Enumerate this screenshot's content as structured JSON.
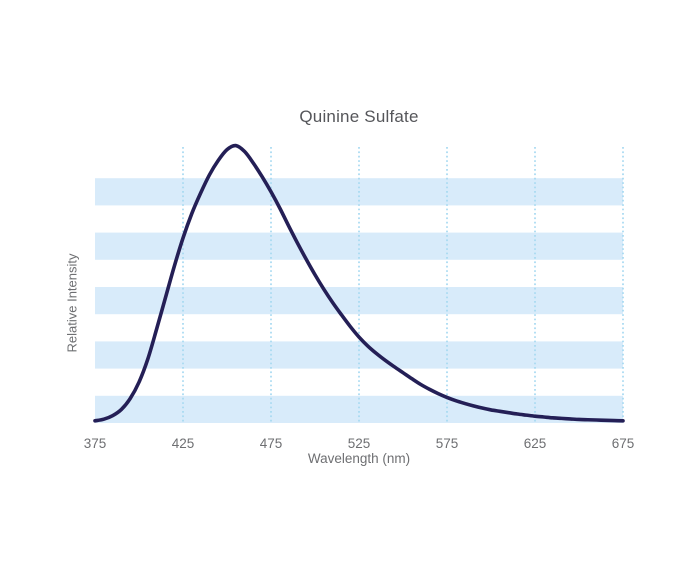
{
  "page": {
    "background": "#ffffff"
  },
  "chart_data": {
    "type": "line",
    "title": "Quinine Sulfate",
    "xlabel": "Wavelength (nm)",
    "ylabel": "Relative Intensity",
    "xlim": [
      375,
      675
    ],
    "ylim": [
      0,
      1.02
    ],
    "x_ticks": [
      "375",
      "425",
      "475",
      "525",
      "575",
      "625",
      "675"
    ],
    "gridlines": {
      "style": "dotted-vertical",
      "x": [
        425,
        475,
        525,
        575,
        625,
        675
      ]
    },
    "background_stripes": {
      "orientation": "horizontal",
      "count": 5,
      "value_bands": [
        [
          0,
          0.1
        ],
        [
          0.2,
          0.3
        ],
        [
          0.4,
          0.5
        ],
        [
          0.6,
          0.7
        ],
        [
          0.8,
          0.9
        ]
      ]
    },
    "series": [
      {
        "name": "Quinine Sulfate",
        "x": [
          375,
          380,
          385,
          390,
          395,
          400,
          405,
          410,
          415,
          420,
          425,
          430,
          435,
          440,
          445,
          450,
          455,
          460,
          465,
          470,
          475,
          480,
          485,
          490,
          495,
          500,
          505,
          510,
          515,
          520,
          525,
          530,
          535,
          540,
          545,
          550,
          555,
          560,
          565,
          570,
          575,
          580,
          585,
          590,
          595,
          600,
          605,
          610,
          615,
          620,
          625,
          630,
          635,
          640,
          645,
          650,
          655,
          660,
          665,
          670,
          675
        ],
        "y": [
          0.008,
          0.014,
          0.027,
          0.05,
          0.09,
          0.15,
          0.235,
          0.345,
          0.46,
          0.575,
          0.68,
          0.77,
          0.845,
          0.912,
          0.965,
          1.005,
          1.02,
          0.998,
          0.955,
          0.905,
          0.85,
          0.79,
          0.725,
          0.662,
          0.602,
          0.545,
          0.492,
          0.443,
          0.398,
          0.355,
          0.316,
          0.283,
          0.255,
          0.23,
          0.207,
          0.185,
          0.163,
          0.142,
          0.124,
          0.108,
          0.094,
          0.082,
          0.072,
          0.063,
          0.055,
          0.048,
          0.043,
          0.038,
          0.033,
          0.029,
          0.025,
          0.022,
          0.019,
          0.017,
          0.015,
          0.013,
          0.012,
          0.011,
          0.01,
          0.009,
          0.008
        ]
      }
    ],
    "colors": {
      "curve": "#241f56",
      "stripe": "#d8ebfa",
      "gridline": "#a6d9f1",
      "title_text": "#55565a",
      "axis_text": "#6e6f72"
    }
  }
}
